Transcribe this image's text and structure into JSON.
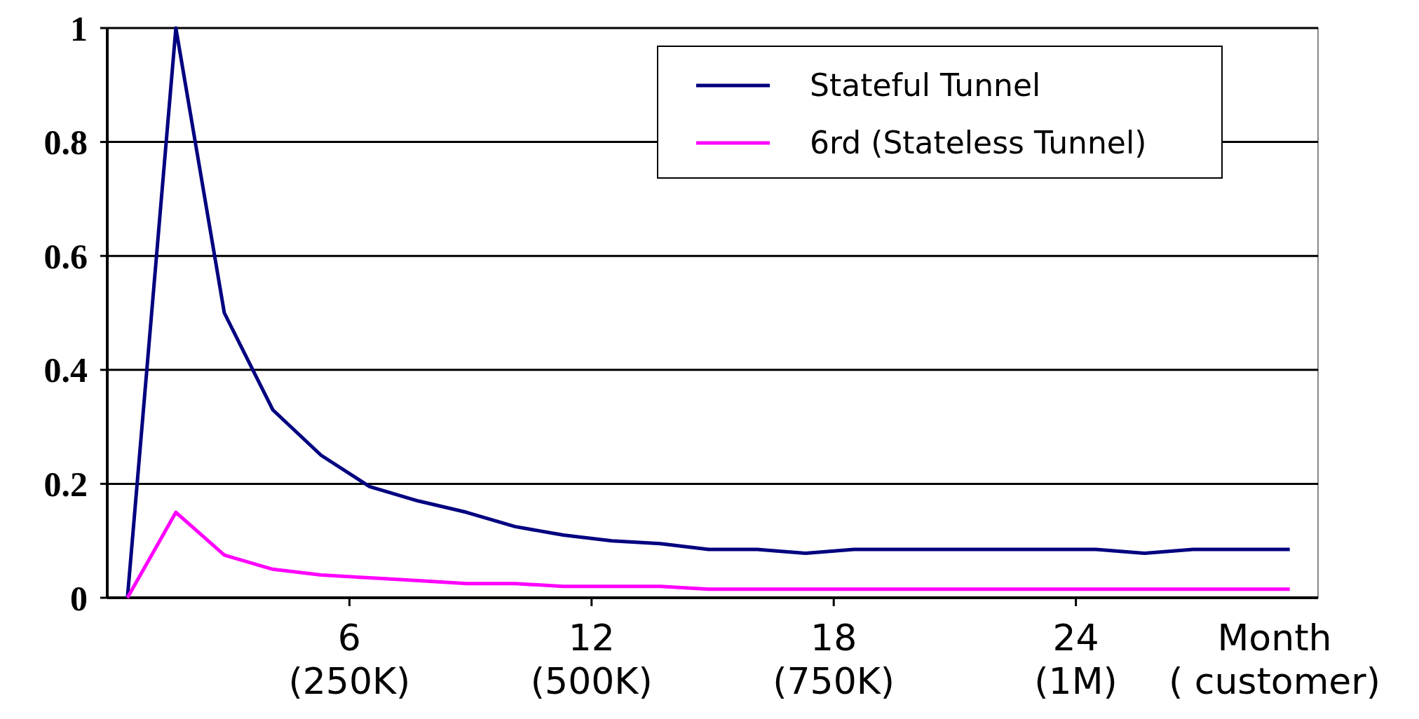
{
  "chart_data": {
    "type": "line",
    "xlabel": "Month\n( customer)",
    "x": [
      0.5,
      1.7,
      2.9,
      4.1,
      5.3,
      6.5,
      7.7,
      8.9,
      10.1,
      11.3,
      12.5,
      13.7,
      14.9,
      16.1,
      17.3,
      18.5,
      19.7,
      20.9,
      22.1,
      23.3,
      24.5,
      25.7,
      26.9,
      28.1,
      29.3
    ],
    "series": [
      {
        "name": "Stateful Tunnel",
        "color": "#000080",
        "values": [
          0,
          1,
          0.5,
          0.33,
          0.25,
          0.195,
          0.17,
          0.15,
          0.125,
          0.11,
          0.1,
          0.095,
          0.085,
          0.085,
          0.078,
          0.085,
          0.085,
          0.085,
          0.085,
          0.085,
          0.085,
          0.078,
          0.085,
          0.085,
          0.085
        ]
      },
      {
        "name": "6rd (Stateless Tunnel)",
        "color": "#ff00ff",
        "values": [
          0,
          0.15,
          0.075,
          0.05,
          0.04,
          0.035,
          0.03,
          0.025,
          0.025,
          0.02,
          0.02,
          0.02,
          0.015,
          0.015,
          0.015,
          0.015,
          0.015,
          0.015,
          0.015,
          0.015,
          0.015,
          0.015,
          0.015,
          0.015,
          0.015
        ]
      }
    ],
    "xlim": [
      0,
      30
    ],
    "xticks": [
      6,
      12,
      18,
      24
    ],
    "annotations": [
      "(250K)",
      "(500K)",
      "(750K)",
      "(1M)"
    ],
    "ylim": [
      0,
      1
    ],
    "yticks": [
      0,
      0.2,
      0.4,
      0.6,
      0.8,
      1
    ],
    "grid": "y",
    "legend": "top right",
    "line_style": "solid"
  }
}
